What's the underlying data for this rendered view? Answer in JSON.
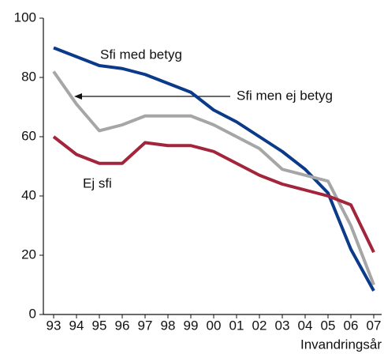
{
  "chart_data": {
    "type": "line",
    "x_label": "Invandringsår",
    "categories": [
      "93",
      "94",
      "95",
      "96",
      "97",
      "98",
      "99",
      "00",
      "01",
      "02",
      "03",
      "04",
      "05",
      "06",
      "07"
    ],
    "series": [
      {
        "name": "Sfi med betyg",
        "color": "#0b3a8a",
        "values": [
          90,
          87,
          84,
          83,
          81,
          78,
          75,
          69,
          65,
          60,
          55,
          49,
          41,
          22,
          8
        ]
      },
      {
        "name": "Sfi men ej betyg",
        "color": "#a6a6a6",
        "values": [
          82,
          71,
          62,
          64,
          67,
          67,
          67,
          64,
          60,
          56,
          49,
          47,
          45,
          30,
          10
        ]
      },
      {
        "name": "Ej sfi",
        "color": "#a2253c",
        "values": [
          60,
          54,
          51,
          51,
          58,
          57,
          57,
          55,
          51,
          47,
          44,
          42,
          40,
          37,
          21
        ]
      }
    ],
    "ylim": [
      0,
      100
    ],
    "yticks": [
      0,
      20,
      40,
      60,
      80,
      100
    ],
    "grid": false
  }
}
